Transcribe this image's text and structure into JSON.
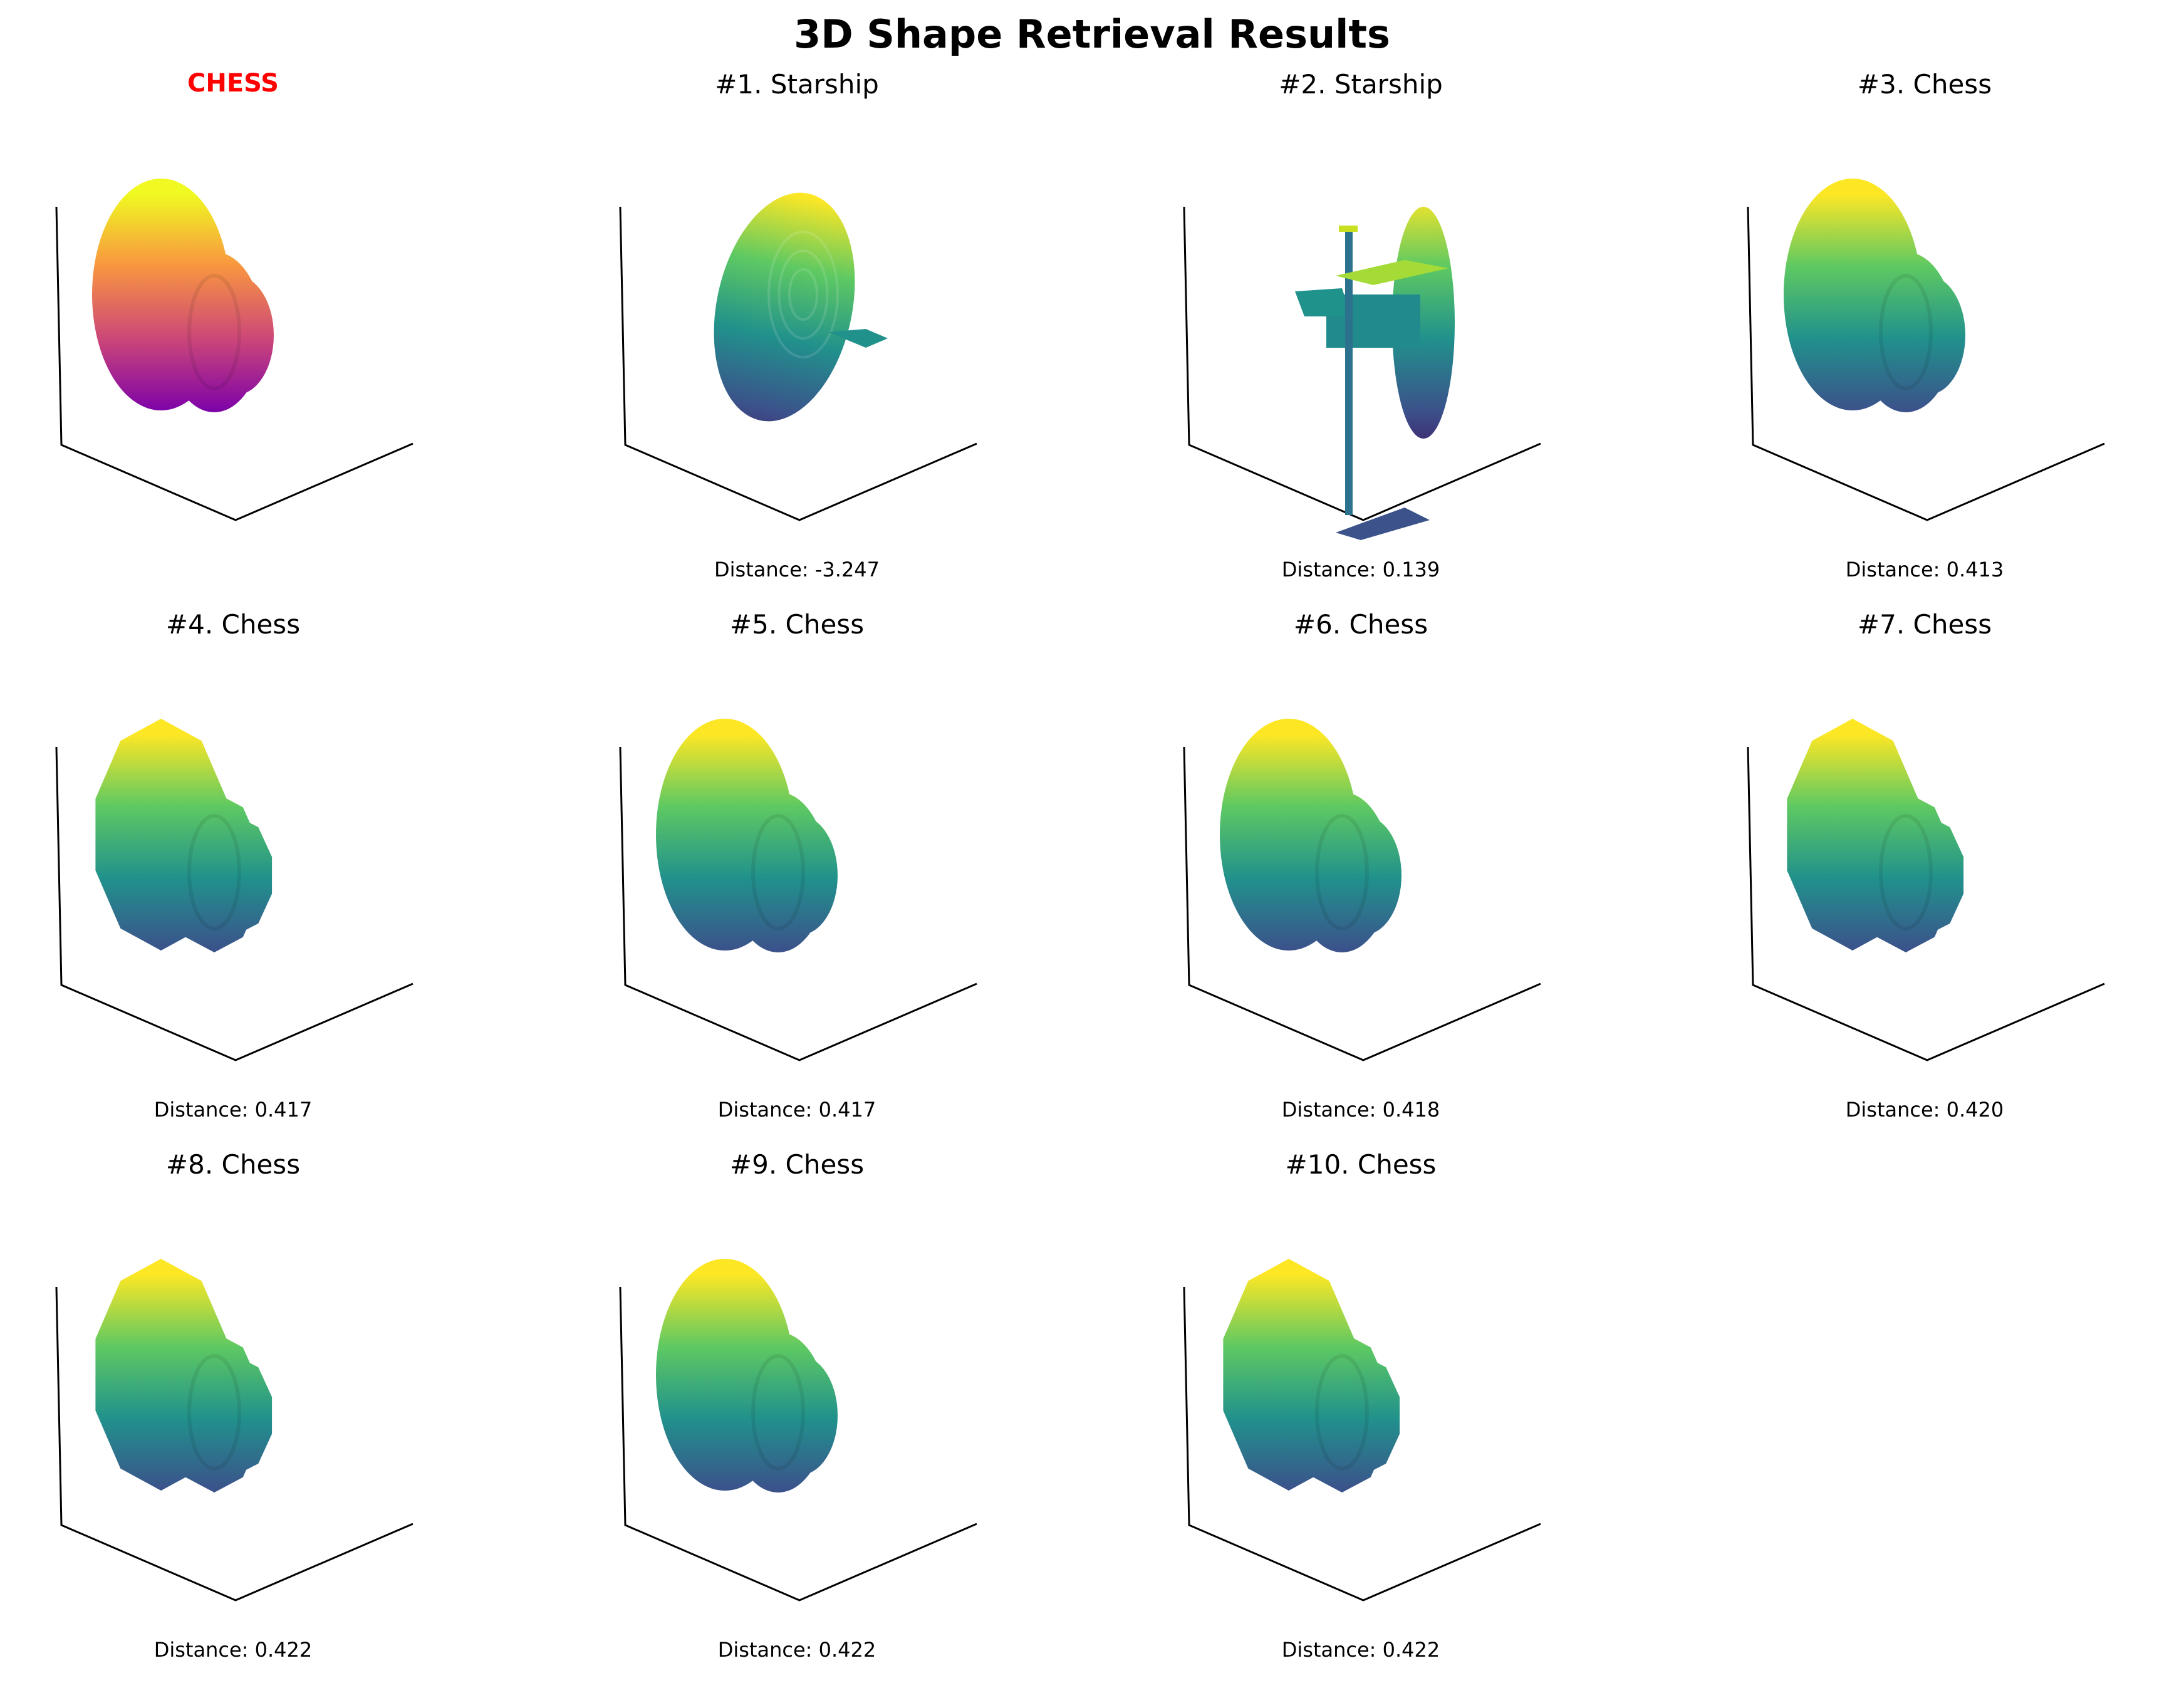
{
  "title": "3D Shape Retrieval Results",
  "colors": {
    "query_title": "#ff0000",
    "text": "#000000",
    "axes": "#000000"
  },
  "query": {
    "label": "CHESS",
    "colormap": "plasma",
    "shape": "chess"
  },
  "results": [
    {
      "label": "#1. Starship",
      "distance": "Distance: -3.247",
      "colormap": "viridis",
      "shape": "dish"
    },
    {
      "label": "#2. Starship",
      "distance": "Distance: 0.139",
      "colormap": "viridis",
      "shape": "ship"
    },
    {
      "label": "#3. Chess",
      "distance": "Distance: 0.413",
      "colormap": "viridis",
      "shape": "chess"
    },
    {
      "label": "#4. Chess",
      "distance": "Distance: 0.417",
      "colormap": "viridis",
      "shape": "chess-angular"
    },
    {
      "label": "#5. Chess",
      "distance": "Distance: 0.417",
      "colormap": "viridis",
      "shape": "chess"
    },
    {
      "label": "#6. Chess",
      "distance": "Distance: 0.418",
      "colormap": "viridis",
      "shape": "chess"
    },
    {
      "label": "#7. Chess",
      "distance": "Distance: 0.420",
      "colormap": "viridis",
      "shape": "chess-angular"
    },
    {
      "label": "#8. Chess",
      "distance": "Distance: 0.422",
      "colormap": "viridis",
      "shape": "chess-angular"
    },
    {
      "label": "#9. Chess",
      "distance": "Distance: 0.422",
      "colormap": "viridis",
      "shape": "chess"
    },
    {
      "label": "#10. Chess",
      "distance": "Distance: 0.422",
      "colormap": "viridis",
      "shape": "chess-angular"
    }
  ]
}
